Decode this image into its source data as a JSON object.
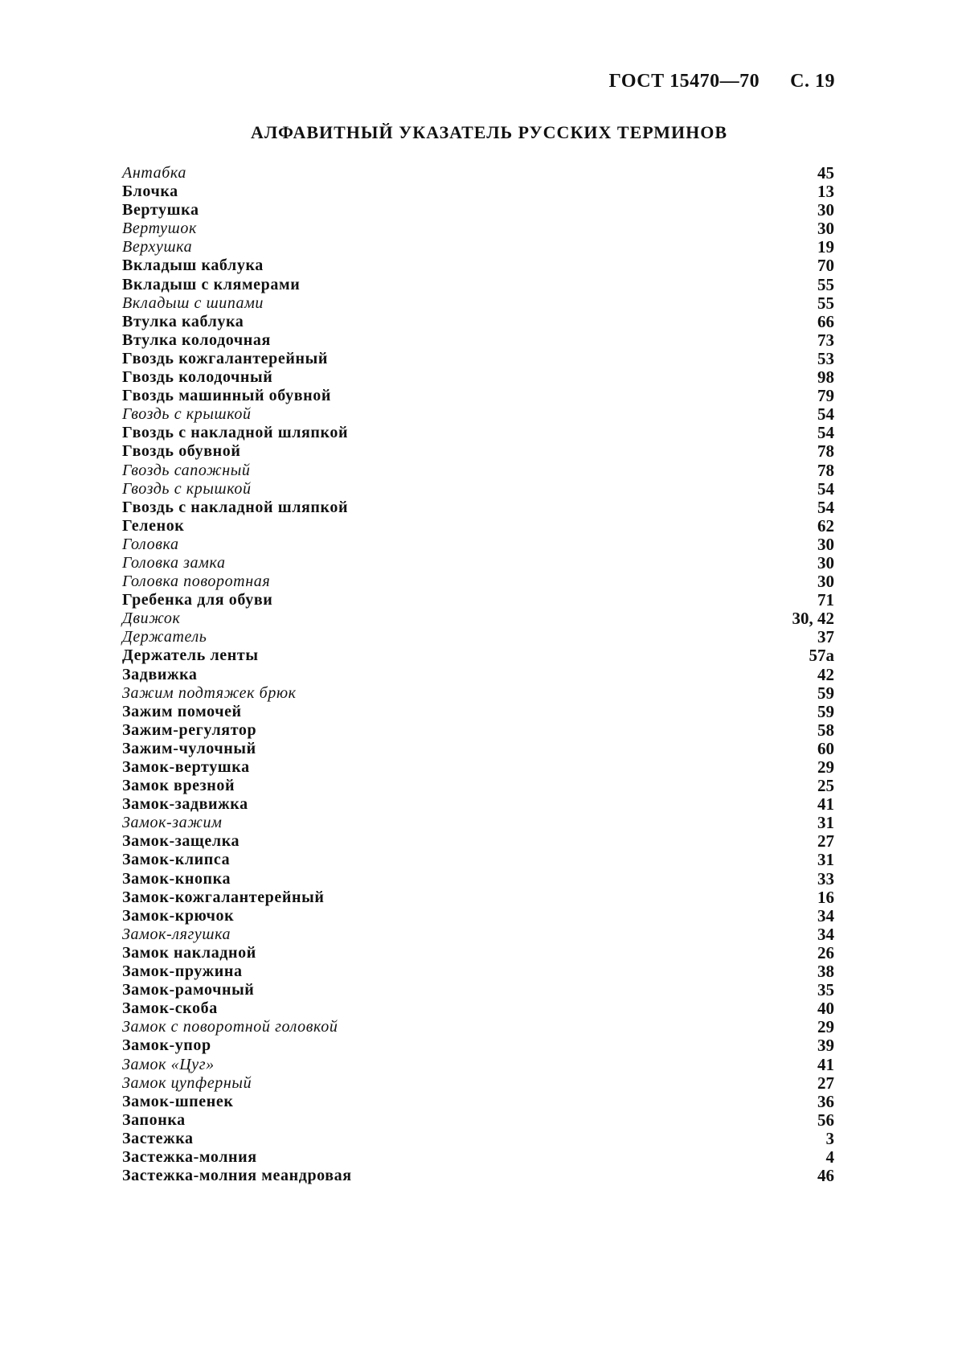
{
  "header": {
    "standard": "ГОСТ 15470—70",
    "page": "С. 19"
  },
  "title": "АЛФАВИТНЫЙ УКАЗАТЕЛЬ РУССКИХ ТЕРМИНОВ",
  "entries": [
    {
      "term": "Антабка",
      "ref": "45",
      "style": "italic"
    },
    {
      "term": "Блочка",
      "ref": "13",
      "style": "bold"
    },
    {
      "term": "Вертушка",
      "ref": "30",
      "style": "bold"
    },
    {
      "term": "Вертушок",
      "ref": "30",
      "style": "italic"
    },
    {
      "term": "Верхушка",
      "ref": "19",
      "style": "italic"
    },
    {
      "term": "Вкладыш каблука",
      "ref": "70",
      "style": "bold"
    },
    {
      "term": "Вкладыш с клямерами",
      "ref": "55",
      "style": "bold"
    },
    {
      "term": "Вкладыш с шипами",
      "ref": "55",
      "style": "italic"
    },
    {
      "term": "Втулка каблука",
      "ref": "66",
      "style": "bold"
    },
    {
      "term": "Втулка колодочная",
      "ref": "73",
      "style": "bold"
    },
    {
      "term": "Гвоздь кожгалантерейный",
      "ref": "53",
      "style": "bold"
    },
    {
      "term": "Гвоздь колодочный",
      "ref": "98",
      "style": "bold"
    },
    {
      "term": "Гвоздь машинный обувной",
      "ref": "79",
      "style": "bold"
    },
    {
      "term": "Гвоздь с крышкой",
      "ref": "54",
      "style": "italic"
    },
    {
      "term": "Гвоздь с накладной шляпкой",
      "ref": "54",
      "style": "bold"
    },
    {
      "term": "Гвоздь обувной",
      "ref": "78",
      "style": "bold"
    },
    {
      "term": "Гвоздь сапожный",
      "ref": "78",
      "style": "italic"
    },
    {
      "term": "Гвоздь с крышкой",
      "ref": "54",
      "style": "italic"
    },
    {
      "term": "Гвоздь с накладной шляпкой",
      "ref": "54",
      "style": "bold"
    },
    {
      "term": "Геленок",
      "ref": "62",
      "style": "bold"
    },
    {
      "term": "Головка",
      "ref": "30",
      "style": "italic"
    },
    {
      "term": "Головка замка",
      "ref": "30",
      "style": "italic"
    },
    {
      "term": "Головка поворотная",
      "ref": "30",
      "style": "italic"
    },
    {
      "term": "Гребенка для обуви",
      "ref": "71",
      "style": "bold"
    },
    {
      "term": "Движок",
      "ref": "30, 42",
      "style": "italic"
    },
    {
      "term": "Держатель",
      "ref": "37",
      "style": "italic"
    },
    {
      "term": "Держатель ленты",
      "ref": "57а",
      "style": "bold"
    },
    {
      "term": "Задвижка",
      "ref": "42",
      "style": "bold"
    },
    {
      "term": "Зажим подтяжек брюк",
      "ref": "59",
      "style": "italic"
    },
    {
      "term": "Зажим помочей",
      "ref": "59",
      "style": "bold"
    },
    {
      "term": "Зажим-регулятор",
      "ref": "58",
      "style": "bold"
    },
    {
      "term": "Зажим-чулочный",
      "ref": "60",
      "style": "bold"
    },
    {
      "term": "Замок-вертушка",
      "ref": "29",
      "style": "bold"
    },
    {
      "term": "Замок врезной",
      "ref": "25",
      "style": "bold"
    },
    {
      "term": "Замок-задвижка",
      "ref": "41",
      "style": "bold"
    },
    {
      "term": "Замок-зажим",
      "ref": "31",
      "style": "italic"
    },
    {
      "term": "Замок-защелка",
      "ref": "27",
      "style": "bold"
    },
    {
      "term": "Замок-клипса",
      "ref": "31",
      "style": "bold"
    },
    {
      "term": "Замок-кнопка",
      "ref": "33",
      "style": "bold"
    },
    {
      "term": "Замок-кожгалантерейный",
      "ref": "16",
      "style": "bold"
    },
    {
      "term": "Замок-крючок",
      "ref": "34",
      "style": "bold"
    },
    {
      "term": "Замок-лягушка",
      "ref": "34",
      "style": "italic"
    },
    {
      "term": "Замок накладной",
      "ref": "26",
      "style": "bold"
    },
    {
      "term": "Замок-пружина",
      "ref": "38",
      "style": "bold"
    },
    {
      "term": "Замок-рамочный",
      "ref": "35",
      "style": "bold"
    },
    {
      "term": "Замок-скоба",
      "ref": "40",
      "style": "bold"
    },
    {
      "term": "Замок с поворотной головкой",
      "ref": "29",
      "style": "italic"
    },
    {
      "term": "Замок-упор",
      "ref": "39",
      "style": "bold"
    },
    {
      "term": "Замок «Цуг»",
      "ref": "41",
      "style": "italic"
    },
    {
      "term": "Замок цупферный",
      "ref": "27",
      "style": "italic"
    },
    {
      "term": "Замок-шпенек",
      "ref": "36",
      "style": "bold"
    },
    {
      "term": "Запонка",
      "ref": "56",
      "style": "bold"
    },
    {
      "term": "Застежка",
      "ref": "3",
      "style": "bold"
    },
    {
      "term": "Застежка-молния",
      "ref": "4",
      "style": "bold"
    },
    {
      "term": "Застежка-молния меандровая",
      "ref": "46",
      "style": "bold"
    }
  ]
}
